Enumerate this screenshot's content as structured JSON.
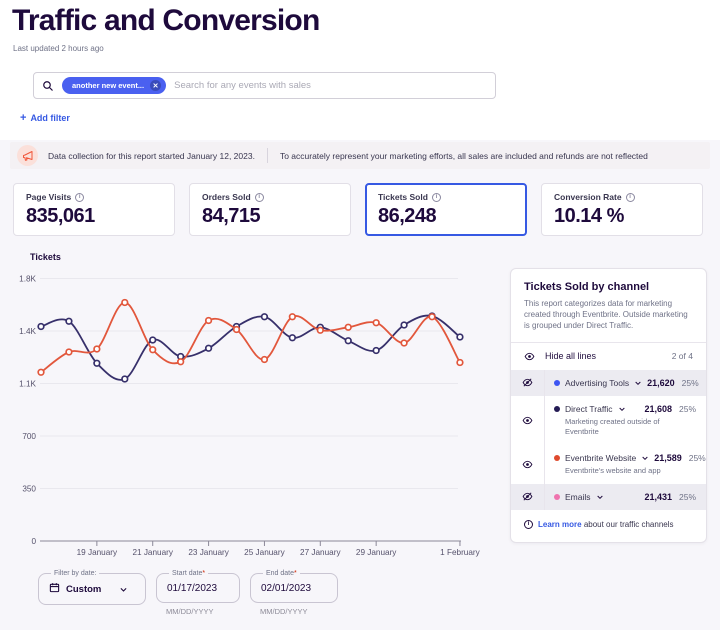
{
  "page": {
    "title": "Traffic and Conversion",
    "last_updated": "Last updated 2 hours ago"
  },
  "search": {
    "chip": "another new event...",
    "chip_close": "✕",
    "placeholder": "Search for any events with sales",
    "add_filter": "Add filter",
    "plus": "+"
  },
  "banner": {
    "text1": "Data collection for this report started January 12, 2023.",
    "text2": "To accurately represent your marketing efforts, all sales are included and refunds are not reflected"
  },
  "stats": [
    {
      "label": "Page Visits",
      "value": "835,061",
      "selected": false
    },
    {
      "label": "Orders Sold",
      "value": "84,715",
      "selected": false
    },
    {
      "label": "Tickets Sold",
      "value": "86,248",
      "selected": true
    },
    {
      "label": "Conversion Rate",
      "value": "10.14 %",
      "selected": false
    }
  ],
  "chart_data": {
    "type": "line",
    "title": "Tickets",
    "x": [
      "17 January",
      "18 January",
      "19 January",
      "20 January",
      "21 January",
      "22 January",
      "23 January",
      "24 January",
      "25 January",
      "26 January",
      "27 January",
      "28 January",
      "29 January",
      "30 January",
      "31 January",
      "1 February"
    ],
    "x_tick_labels": [
      "19 January",
      "21 January",
      "23 January",
      "25 January",
      "27 January",
      "29 January",
      "1 February"
    ],
    "x_tick_indices": [
      2,
      4,
      6,
      8,
      10,
      12,
      15
    ],
    "y_ticks": [
      0,
      350,
      700,
      1050,
      1400,
      1750
    ],
    "y_tick_labels": [
      "0",
      "350",
      "700",
      "1.1K",
      "1.4K",
      "1.8K"
    ],
    "ylim": [
      0,
      1850
    ],
    "grid": true,
    "series": [
      {
        "name": "Direct Traffic",
        "color": "#37306b",
        "values": [
          1430,
          1465,
          1185,
          1080,
          1340,
          1230,
          1285,
          1430,
          1495,
          1355,
          1425,
          1335,
          1270,
          1440,
          1500,
          1360
        ]
      },
      {
        "name": "Eventbrite Website",
        "color": "#e2573c",
        "values": [
          1125,
          1260,
          1280,
          1590,
          1275,
          1195,
          1470,
          1410,
          1210,
          1495,
          1405,
          1425,
          1455,
          1320,
          1495,
          1190
        ]
      }
    ]
  },
  "channel_panel": {
    "title": "Tickets Sold by channel",
    "description": "This report categorizes data for marketing created through Eventbrite. Outside marketing is grouped under Direct Traffic.",
    "hide_all": "Hide all lines",
    "shown_count": "2 of 4",
    "channels": [
      {
        "name": "Advertising Tools",
        "value": "21,620",
        "pct": "25%",
        "dot_color": "#3d55f2",
        "hidden": true,
        "subtitle": ""
      },
      {
        "name": "Direct Traffic",
        "value": "21,608",
        "pct": "25%",
        "dot_color": "#241b54",
        "hidden": false,
        "subtitle": "Marketing created outside of Eventbrite"
      },
      {
        "name": "Eventbrite Website",
        "value": "21,589",
        "pct": "25%",
        "dot_color": "#df4a2d",
        "hidden": false,
        "subtitle": "Eventbrite's website and app"
      },
      {
        "name": "Emails",
        "value": "21,431",
        "pct": "25%",
        "dot_color": "#ef73ae",
        "hidden": true,
        "subtitle": ""
      }
    ],
    "footer_link": "Learn more",
    "footer_rest": "about our traffic channels"
  },
  "date_filter": {
    "filter_label": "Filter by date:",
    "filter_value": "Custom",
    "start_label": "Start date",
    "start_value": "01/17/2023",
    "end_label": "End date",
    "end_value": "02/01/2023",
    "required_mark": "*",
    "format_hint": "MM/DD/YYYY"
  }
}
